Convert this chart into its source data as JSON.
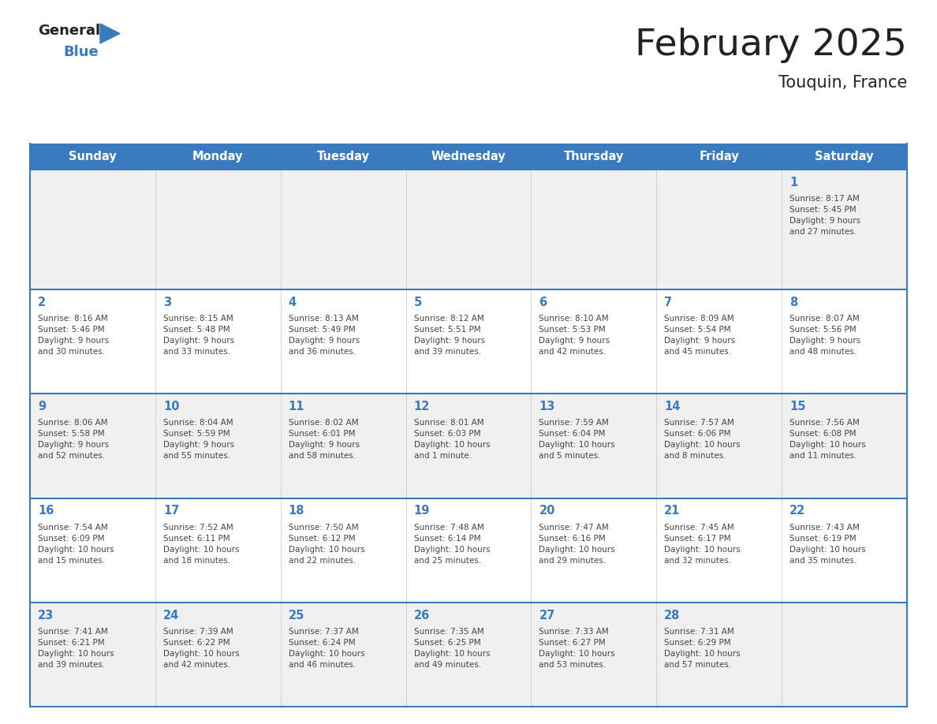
{
  "title": "February 2025",
  "subtitle": "Touquin, France",
  "days_of_week": [
    "Sunday",
    "Monday",
    "Tuesday",
    "Wednesday",
    "Thursday",
    "Friday",
    "Saturday"
  ],
  "header_bg": "#3a7bbf",
  "header_text": "#ffffff",
  "cell_bg_even": "#f0f0f0",
  "cell_bg_odd": "#ffffff",
  "border_color": "#3a7bbf",
  "cell_border_color": "#3a7bbf",
  "day_num_color": "#3a7bbf",
  "text_color": "#444444",
  "title_color": "#222222",
  "logo_text_color": "#222222",
  "logo_blue_color": "#3a7bbf",
  "calendar_data": [
    [
      {
        "day": null,
        "info": null
      },
      {
        "day": null,
        "info": null
      },
      {
        "day": null,
        "info": null
      },
      {
        "day": null,
        "info": null
      },
      {
        "day": null,
        "info": null
      },
      {
        "day": null,
        "info": null
      },
      {
        "day": 1,
        "info": "Sunrise: 8:17 AM\nSunset: 5:45 PM\nDaylight: 9 hours\nand 27 minutes."
      }
    ],
    [
      {
        "day": 2,
        "info": "Sunrise: 8:16 AM\nSunset: 5:46 PM\nDaylight: 9 hours\nand 30 minutes."
      },
      {
        "day": 3,
        "info": "Sunrise: 8:15 AM\nSunset: 5:48 PM\nDaylight: 9 hours\nand 33 minutes."
      },
      {
        "day": 4,
        "info": "Sunrise: 8:13 AM\nSunset: 5:49 PM\nDaylight: 9 hours\nand 36 minutes."
      },
      {
        "day": 5,
        "info": "Sunrise: 8:12 AM\nSunset: 5:51 PM\nDaylight: 9 hours\nand 39 minutes."
      },
      {
        "day": 6,
        "info": "Sunrise: 8:10 AM\nSunset: 5:53 PM\nDaylight: 9 hours\nand 42 minutes."
      },
      {
        "day": 7,
        "info": "Sunrise: 8:09 AM\nSunset: 5:54 PM\nDaylight: 9 hours\nand 45 minutes."
      },
      {
        "day": 8,
        "info": "Sunrise: 8:07 AM\nSunset: 5:56 PM\nDaylight: 9 hours\nand 48 minutes."
      }
    ],
    [
      {
        "day": 9,
        "info": "Sunrise: 8:06 AM\nSunset: 5:58 PM\nDaylight: 9 hours\nand 52 minutes."
      },
      {
        "day": 10,
        "info": "Sunrise: 8:04 AM\nSunset: 5:59 PM\nDaylight: 9 hours\nand 55 minutes."
      },
      {
        "day": 11,
        "info": "Sunrise: 8:02 AM\nSunset: 6:01 PM\nDaylight: 9 hours\nand 58 minutes."
      },
      {
        "day": 12,
        "info": "Sunrise: 8:01 AM\nSunset: 6:03 PM\nDaylight: 10 hours\nand 1 minute."
      },
      {
        "day": 13,
        "info": "Sunrise: 7:59 AM\nSunset: 6:04 PM\nDaylight: 10 hours\nand 5 minutes."
      },
      {
        "day": 14,
        "info": "Sunrise: 7:57 AM\nSunset: 6:06 PM\nDaylight: 10 hours\nand 8 minutes."
      },
      {
        "day": 15,
        "info": "Sunrise: 7:56 AM\nSunset: 6:08 PM\nDaylight: 10 hours\nand 11 minutes."
      }
    ],
    [
      {
        "day": 16,
        "info": "Sunrise: 7:54 AM\nSunset: 6:09 PM\nDaylight: 10 hours\nand 15 minutes."
      },
      {
        "day": 17,
        "info": "Sunrise: 7:52 AM\nSunset: 6:11 PM\nDaylight: 10 hours\nand 18 minutes."
      },
      {
        "day": 18,
        "info": "Sunrise: 7:50 AM\nSunset: 6:12 PM\nDaylight: 10 hours\nand 22 minutes."
      },
      {
        "day": 19,
        "info": "Sunrise: 7:48 AM\nSunset: 6:14 PM\nDaylight: 10 hours\nand 25 minutes."
      },
      {
        "day": 20,
        "info": "Sunrise: 7:47 AM\nSunset: 6:16 PM\nDaylight: 10 hours\nand 29 minutes."
      },
      {
        "day": 21,
        "info": "Sunrise: 7:45 AM\nSunset: 6:17 PM\nDaylight: 10 hours\nand 32 minutes."
      },
      {
        "day": 22,
        "info": "Sunrise: 7:43 AM\nSunset: 6:19 PM\nDaylight: 10 hours\nand 35 minutes."
      }
    ],
    [
      {
        "day": 23,
        "info": "Sunrise: 7:41 AM\nSunset: 6:21 PM\nDaylight: 10 hours\nand 39 minutes."
      },
      {
        "day": 24,
        "info": "Sunrise: 7:39 AM\nSunset: 6:22 PM\nDaylight: 10 hours\nand 42 minutes."
      },
      {
        "day": 25,
        "info": "Sunrise: 7:37 AM\nSunset: 6:24 PM\nDaylight: 10 hours\nand 46 minutes."
      },
      {
        "day": 26,
        "info": "Sunrise: 7:35 AM\nSunset: 6:25 PM\nDaylight: 10 hours\nand 49 minutes."
      },
      {
        "day": 27,
        "info": "Sunrise: 7:33 AM\nSunset: 6:27 PM\nDaylight: 10 hours\nand 53 minutes."
      },
      {
        "day": 28,
        "info": "Sunrise: 7:31 AM\nSunset: 6:29 PM\nDaylight: 10 hours\nand 57 minutes."
      },
      {
        "day": null,
        "info": null
      }
    ]
  ]
}
